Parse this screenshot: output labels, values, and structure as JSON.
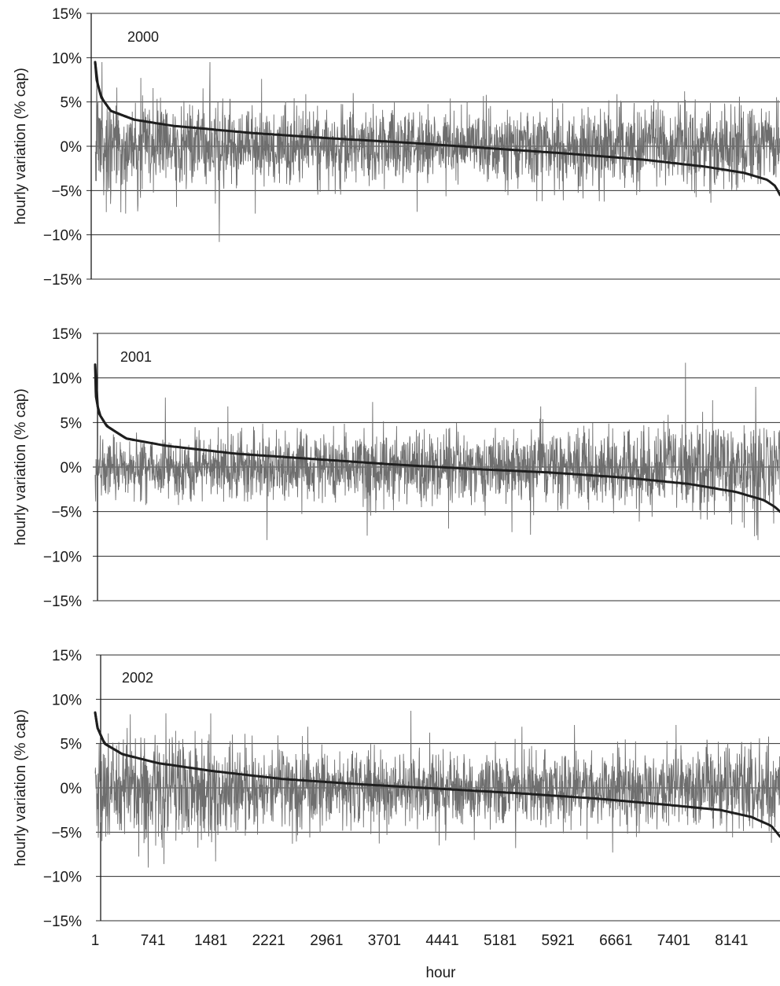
{
  "chart_data": [
    {
      "type": "line",
      "panel_label": "2000",
      "ylabel": "hourly variation (% cap)",
      "ylim": [
        -15,
        15
      ],
      "y_ticks": [
        "15%",
        "10%",
        "5%",
        "0%",
        "−5%",
        "−10%",
        "−15%"
      ],
      "x_tick_labels": [],
      "xlim": [
        1,
        8760
      ],
      "grid": "horizontal",
      "series": [
        {
          "color": "#6e6e6e",
          "seed": 2000,
          "noise_sd": 2.2,
          "envelope": [
            [
              1,
              1.25
            ],
            [
              1200,
              1.1
            ],
            [
              2600,
              0.95
            ],
            [
              4500,
              0.9
            ],
            [
              6500,
              1.0
            ],
            [
              8760,
              1.05
            ]
          ],
          "spikes": [
            [
              90,
              9.5
            ],
            [
              1470,
              9.5
            ],
            [
              2130,
              7.6
            ],
            [
              1590,
              -10.8
            ],
            [
              390,
              -7.6
            ],
            [
              2050,
              -7.6
            ],
            [
              4120,
              -7.4
            ],
            [
              5650,
              -6.2
            ],
            [
              5720,
              -6.2
            ],
            [
              5990,
              -6.1
            ],
            [
              7540,
              6.2
            ],
            [
              8240,
              5.6
            ],
            [
              3300,
              6.0
            ]
          ]
        },
        {
          "color": "#1e1e1e",
          "duration_curve": [
            [
              1,
              9.5
            ],
            [
              20,
              7.5
            ],
            [
              80,
              5.5
            ],
            [
              200,
              4.0
            ],
            [
              500,
              3.0
            ],
            [
              1000,
              2.3
            ],
            [
              2000,
              1.5
            ],
            [
              3000,
              0.9
            ],
            [
              4000,
              0.4
            ],
            [
              5000,
              -0.2
            ],
            [
              6000,
              -0.8
            ],
            [
              7000,
              -1.5
            ],
            [
              7800,
              -2.3
            ],
            [
              8300,
              -3.0
            ],
            [
              8600,
              -3.8
            ],
            [
              8700,
              -4.5
            ],
            [
              8760,
              -5.5
            ]
          ]
        }
      ]
    },
    {
      "type": "line",
      "panel_label": "2001",
      "ylabel": "hourly variation (% cap)",
      "ylim": [
        -15,
        15
      ],
      "y_ticks": [
        "15%",
        "10%",
        "5%",
        "0%",
        "−5%",
        "−10%",
        "−15%"
      ],
      "x_tick_labels": [],
      "xlim": [
        1,
        8760
      ],
      "grid": "horizontal",
      "series": [
        {
          "color": "#6e6e6e",
          "seed": 2001,
          "noise_sd": 1.9,
          "envelope": [
            [
              1,
              0.9
            ],
            [
              1500,
              0.95
            ],
            [
              3000,
              1.0
            ],
            [
              5000,
              1.0
            ],
            [
              6500,
              1.15
            ],
            [
              8000,
              1.35
            ],
            [
              8760,
              1.35
            ]
          ],
          "spikes": [
            [
              900,
              7.8
            ],
            [
              1700,
              6.8
            ],
            [
              3550,
              7.3
            ],
            [
              5700,
              6.8
            ],
            [
              7550,
              11.7
            ],
            [
              8450,
              9.0
            ],
            [
              7900,
              7.5
            ],
            [
              2200,
              -8.2
            ],
            [
              3480,
              -7.7
            ],
            [
              5330,
              -7.3
            ],
            [
              5570,
              -7.6
            ],
            [
              8480,
              -8.2
            ],
            [
              4520,
              -6.9
            ]
          ]
        },
        {
          "color": "#1e1e1e",
          "duration_curve": [
            [
              1,
              11.5
            ],
            [
              10,
              8.0
            ],
            [
              50,
              6.0
            ],
            [
              150,
              4.6
            ],
            [
              400,
              3.2
            ],
            [
              900,
              2.4
            ],
            [
              1800,
              1.5
            ],
            [
              2800,
              0.9
            ],
            [
              3800,
              0.3
            ],
            [
              4800,
              -0.2
            ],
            [
              5800,
              -0.6
            ],
            [
              6800,
              -1.2
            ],
            [
              7600,
              -1.9
            ],
            [
              8200,
              -2.8
            ],
            [
              8550,
              -3.7
            ],
            [
              8700,
              -4.5
            ],
            [
              8760,
              -5.0
            ]
          ]
        }
      ]
    },
    {
      "type": "line",
      "panel_label": "2002",
      "xlabel": "hour",
      "ylabel": "hourly variation (% cap)",
      "ylim": [
        -15,
        15
      ],
      "y_ticks": [
        "15%",
        "10%",
        "5%",
        "0%",
        "−5%",
        "−10%",
        "−15%"
      ],
      "x_tick_labels": [
        "1",
        "741",
        "1481",
        "2221",
        "2961",
        "3701",
        "4441",
        "5181",
        "5921",
        "6661",
        "7401",
        "8141"
      ],
      "xlim": [
        1,
        8760
      ],
      "grid": "horizontal",
      "series": [
        {
          "color": "#6e6e6e",
          "seed": 2002,
          "noise_sd": 2.2,
          "envelope": [
            [
              1,
              1.15
            ],
            [
              700,
              1.35
            ],
            [
              1500,
              1.3
            ],
            [
              2200,
              1.0
            ],
            [
              4000,
              0.95
            ],
            [
              6000,
              0.95
            ],
            [
              8760,
              1.05
            ]
          ],
          "spikes": [
            [
              450,
              8.3
            ],
            [
              1480,
              8.4
            ],
            [
              2720,
              6.9
            ],
            [
              4040,
              8.7
            ],
            [
              5460,
              6.9
            ],
            [
              6130,
              7.1
            ],
            [
              7430,
              7.1
            ],
            [
              680,
              -9.0
            ],
            [
              1540,
              -8.3
            ],
            [
              880,
              -8.6
            ],
            [
              4400,
              -6.5
            ],
            [
              5380,
              -6.8
            ],
            [
              6620,
              -7.3
            ],
            [
              8650,
              -6.2
            ]
          ]
        },
        {
          "color": "#1e1e1e",
          "duration_curve": [
            [
              1,
              8.5
            ],
            [
              30,
              6.8
            ],
            [
              120,
              5.0
            ],
            [
              350,
              3.8
            ],
            [
              800,
              2.8
            ],
            [
              1500,
              1.9
            ],
            [
              2400,
              1.0
            ],
            [
              3400,
              0.4
            ],
            [
              4400,
              -0.1
            ],
            [
              5400,
              -0.6
            ],
            [
              6400,
              -1.2
            ],
            [
              7300,
              -1.9
            ],
            [
              8000,
              -2.5
            ],
            [
              8400,
              -3.3
            ],
            [
              8650,
              -4.3
            ],
            [
              8760,
              -5.5
            ]
          ]
        }
      ]
    }
  ]
}
